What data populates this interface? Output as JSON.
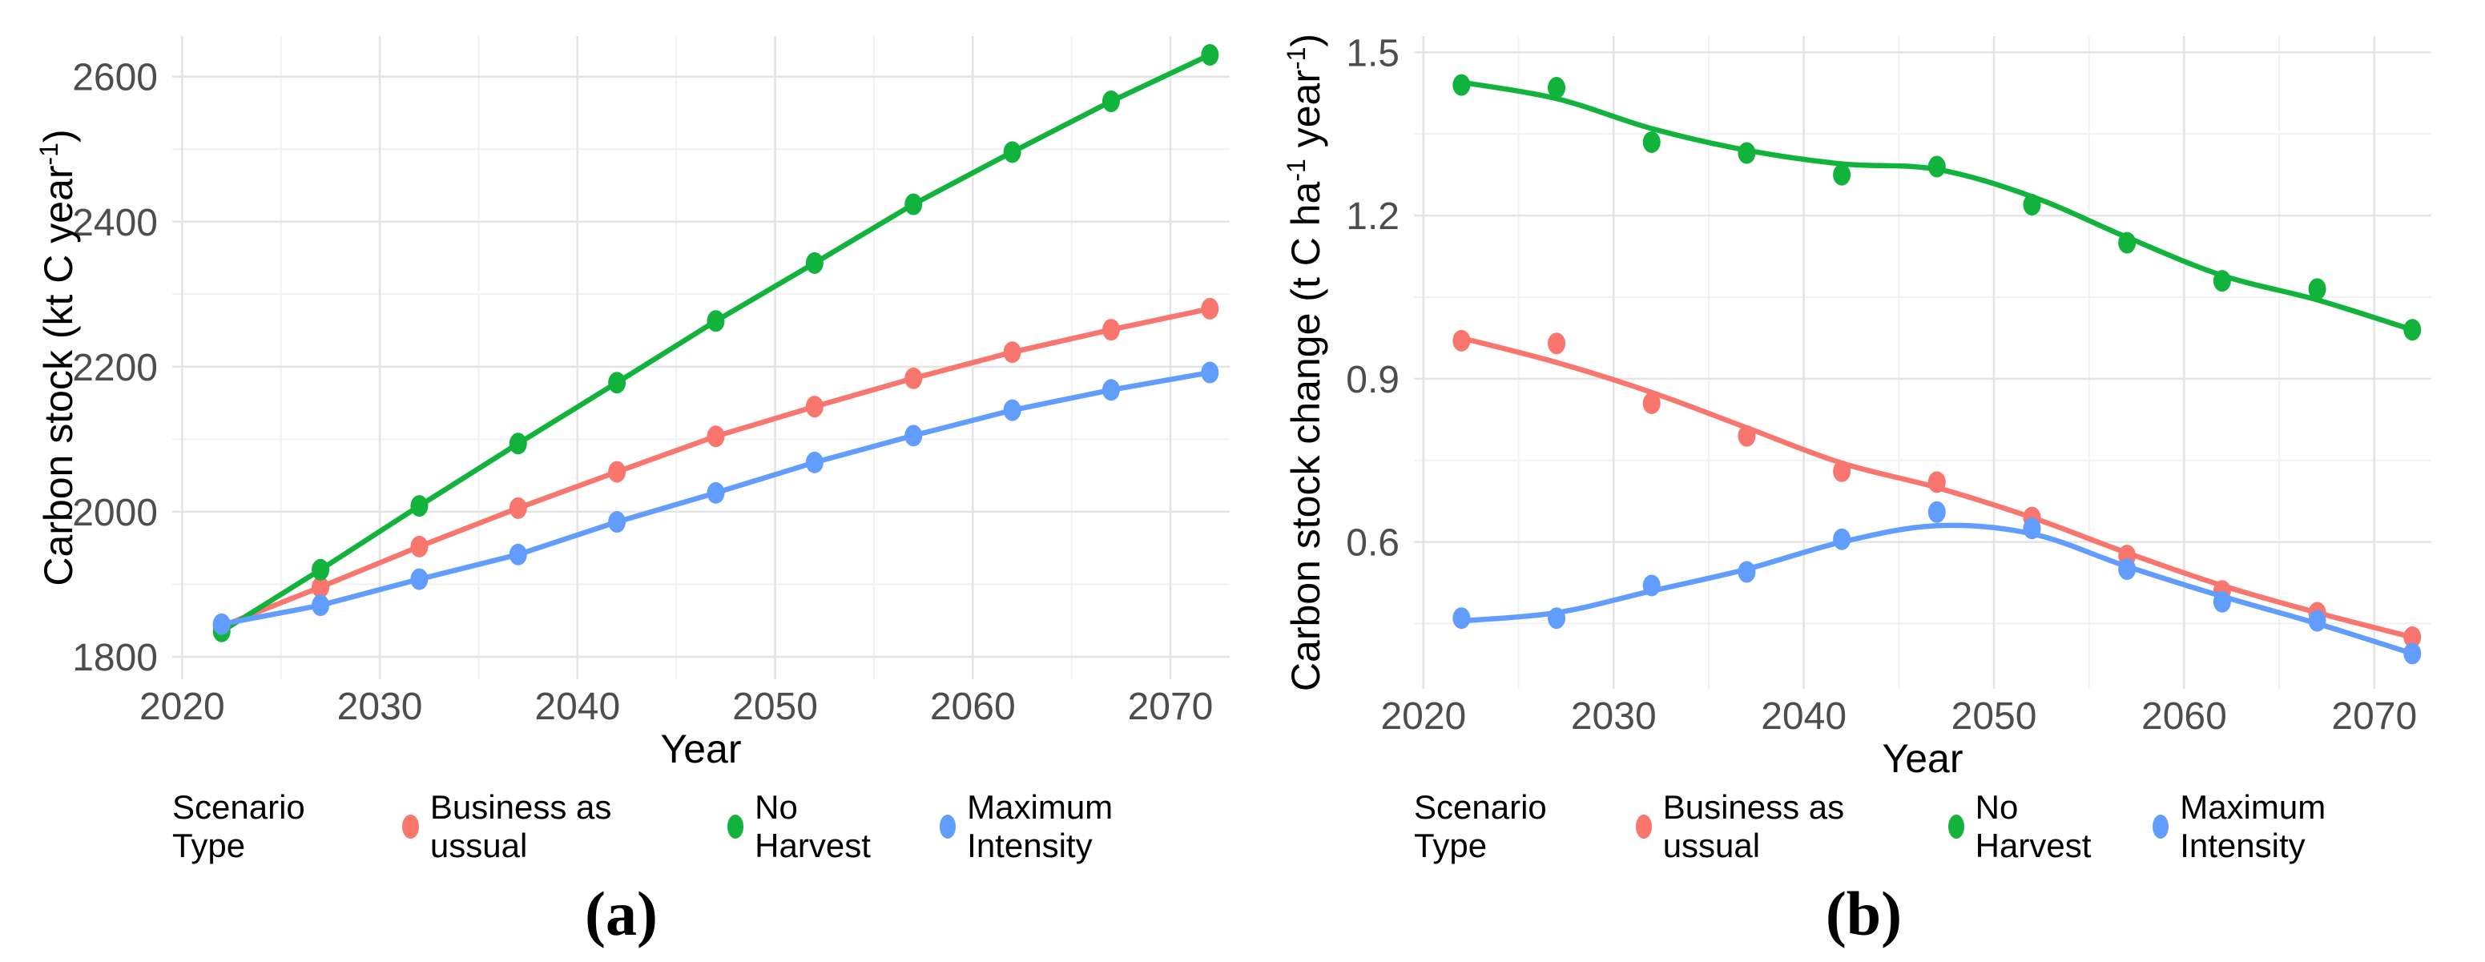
{
  "figure": {
    "caption_a": "(a)",
    "caption_b": "(b)"
  },
  "legend": {
    "title": "Scenario Type",
    "items": [
      {
        "label": "Business as ussual",
        "color": "#F8766D"
      },
      {
        "label": "No Harvest",
        "color": "#12B33C"
      },
      {
        "label": "Maximum Intensity",
        "color": "#619CFF"
      }
    ]
  },
  "style": {
    "axis_text_color": "#4D4D4D",
    "title_text_color": "#000000",
    "grid_major": "#E4E4E4",
    "grid_minor": "#F1F1F1",
    "background": "#FFFFFF"
  },
  "chart_data": [
    {
      "id": "a",
      "type": "line",
      "title": "",
      "xlabel": "Year",
      "ylabel_segments": [
        {
          "text": "Carbon stock (kt C year"
        },
        {
          "text": "-1",
          "sup": true
        },
        {
          "text": ")"
        }
      ],
      "legend_position": "bottom",
      "grid": true,
      "xlim": [
        2019.5,
        2073
      ],
      "ylim": [
        1769,
        2656
      ],
      "xticks": [
        {
          "v": 2020,
          "label": "2020"
        },
        {
          "v": 2030,
          "label": "2030"
        },
        {
          "v": 2040,
          "label": "2040"
        },
        {
          "v": 2050,
          "label": "2050"
        },
        {
          "v": 2060,
          "label": "2060"
        },
        {
          "v": 2070,
          "label": "2070"
        }
      ],
      "yticks": [
        {
          "v": 1800,
          "label": "1800"
        },
        {
          "v": 2000,
          "label": "2000"
        },
        {
          "v": 2200,
          "label": "2200"
        },
        {
          "v": 2400,
          "label": "2400"
        },
        {
          "v": 2600,
          "label": "2600"
        }
      ],
      "xminor": [
        2025,
        2035,
        2045,
        2055,
        2065
      ],
      "yminor": [
        1900,
        2100,
        2300,
        2500
      ],
      "x": [
        2022,
        2027,
        2032,
        2037,
        2042,
        2047,
        2052,
        2057,
        2062,
        2067,
        2072
      ],
      "line_style": "straight",
      "series": [
        {
          "name": "Business as ussual",
          "color": "#F8766D",
          "values": [
            1842,
            1896,
            1952,
            2005,
            2055,
            2104,
            2145,
            2184,
            2220,
            2251,
            2280
          ]
        },
        {
          "name": "No Harvest",
          "color": "#12B33C",
          "values": [
            1835,
            1920,
            2008,
            2094,
            2178,
            2263,
            2343,
            2424,
            2496,
            2566,
            2630
          ]
        },
        {
          "name": "Maximum Intensity",
          "color": "#619CFF",
          "values": [
            1845,
            1871,
            1907,
            1941,
            1986,
            2026,
            2068,
            2105,
            2140,
            2168,
            2192
          ]
        }
      ]
    },
    {
      "id": "b",
      "type": "scatter",
      "title": "",
      "xlabel": "Year",
      "ylabel_segments": [
        {
          "text": "Carbon stock change (t C ha"
        },
        {
          "text": "-1",
          "sup": true
        },
        {
          "text": " year"
        },
        {
          "text": "-1",
          "sup": true
        },
        {
          "text": ")"
        }
      ],
      "legend_position": "bottom",
      "grid": true,
      "xlim": [
        2019.5,
        2073
      ],
      "ylim": [
        0.33,
        1.53
      ],
      "xticks": [
        {
          "v": 2020,
          "label": "2020"
        },
        {
          "v": 2030,
          "label": "2030"
        },
        {
          "v": 2040,
          "label": "2040"
        },
        {
          "v": 2050,
          "label": "2050"
        },
        {
          "v": 2060,
          "label": "2060"
        },
        {
          "v": 2070,
          "label": "2070"
        }
      ],
      "yticks": [
        {
          "v": 0.6,
          "label": "0.6"
        },
        {
          "v": 0.9,
          "label": "0.9"
        },
        {
          "v": 1.2,
          "label": "1.2"
        },
        {
          "v": 1.5,
          "label": "1.5"
        }
      ],
      "xminor": [
        2025,
        2035,
        2045,
        2055,
        2065
      ],
      "yminor": [
        0.45,
        0.75,
        1.05,
        1.35
      ],
      "x": [
        2022,
        2027,
        2032,
        2037,
        2042,
        2047,
        2052,
        2057,
        2062,
        2067,
        2072
      ],
      "line_style": "smooth",
      "series": [
        {
          "name": "Business as ussual",
          "color": "#F8766D",
          "values": [
            0.97,
            0.965,
            0.855,
            0.795,
            0.73,
            0.71,
            0.645,
            0.575,
            0.51,
            0.47,
            0.425
          ],
          "smooth": [
            0.975,
            0.93,
            0.875,
            0.81,
            0.745,
            0.7,
            0.645,
            0.58,
            0.52,
            0.47,
            0.425
          ]
        },
        {
          "name": "No Harvest",
          "color": "#12B33C",
          "values": [
            1.44,
            1.435,
            1.335,
            1.315,
            1.275,
            1.29,
            1.22,
            1.15,
            1.08,
            1.065,
            0.99
          ],
          "smooth": [
            1.445,
            1.415,
            1.36,
            1.32,
            1.295,
            1.285,
            1.235,
            1.16,
            1.09,
            1.045,
            0.99
          ]
        },
        {
          "name": "Maximum Intensity",
          "color": "#619CFF",
          "values": [
            0.46,
            0.46,
            0.52,
            0.545,
            0.605,
            0.655,
            0.625,
            0.55,
            0.49,
            0.455,
            0.395
          ],
          "smooth": [
            0.455,
            0.47,
            0.51,
            0.55,
            0.6,
            0.63,
            0.615,
            0.555,
            0.5,
            0.45,
            0.395
          ]
        }
      ]
    }
  ]
}
